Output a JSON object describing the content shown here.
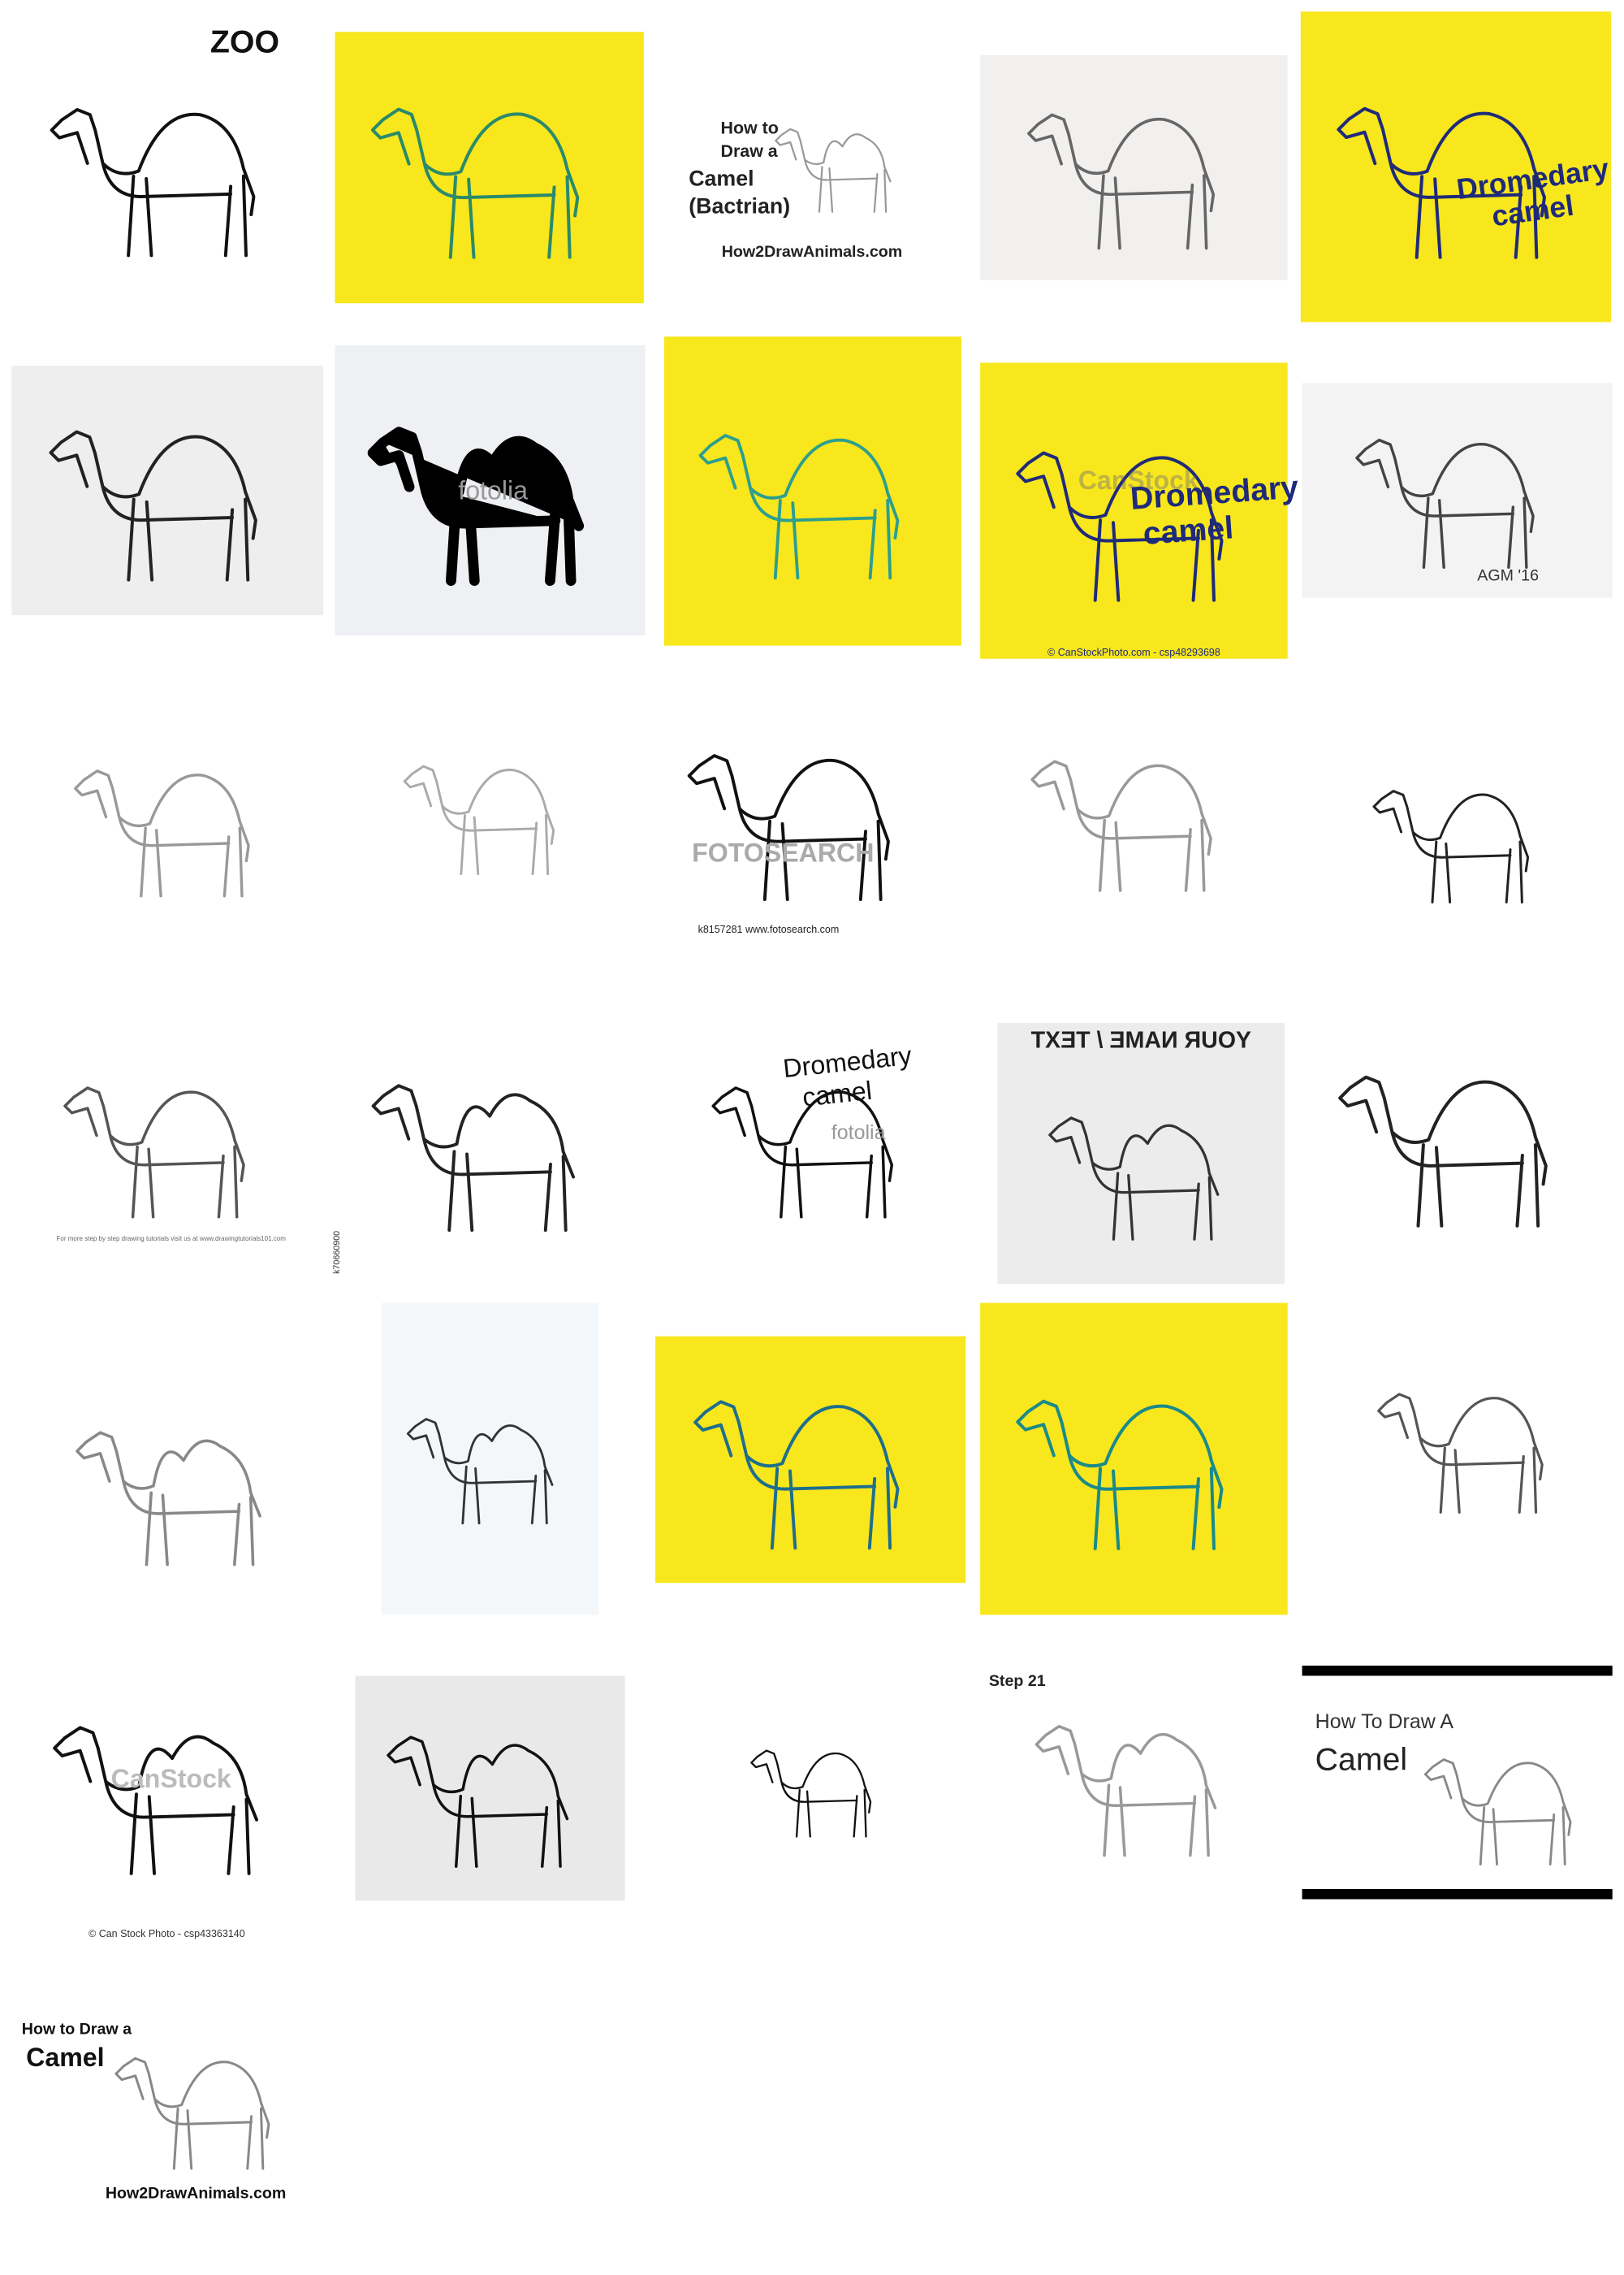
{
  "texts": [
    "ZOO",
    "How to",
    "Draw a",
    "Camel",
    "(Bactrian)",
    "How2DrawAnimals.com",
    "Dromedary",
    "camel",
    "fotolia",
    "CanStock",
    "Dromedary",
    "camel",
    "© CanStockPhoto.com - csp48293698",
    "AGM '16",
    "FOTOSEARCH",
    "k8157281  www.fotosearch.com",
    "For more step by step drawing tutorials visit us at www.drawingtutorials101.com",
    "k70660900",
    "Dromedary",
    "camel",
    "fotolia",
    "YOUR NAME / TEXT",
    "CanStock",
    "© Can Stock Photo - csp43363140",
    "Step 21",
    "How To Draw A",
    "Camel",
    "How to Draw a",
    "Camel",
    "How2DrawAnimals.com"
  ]
}
